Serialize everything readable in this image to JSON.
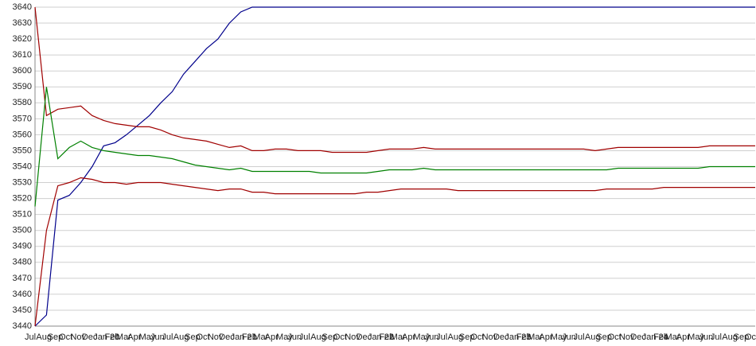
{
  "chart_data": {
    "type": "line",
    "categories": [
      "Jul",
      "Aug",
      "Sep",
      "Oct",
      "Nov",
      "Dec",
      "Jan 20",
      "Feb",
      "Mar",
      "Apr",
      "May",
      "Jun",
      "Jul",
      "Aug",
      "Sep",
      "Oct",
      "Nov",
      "Dec",
      "Jan 21",
      "Feb",
      "Mar",
      "Apr",
      "May",
      "Jun",
      "Jul",
      "Aug",
      "Sep",
      "Oct",
      "Nov",
      "Dec",
      "Jan 22",
      "Feb",
      "Mar",
      "Apr",
      "May",
      "Jun",
      "Jul",
      "Aug",
      "Sep",
      "Oct",
      "Nov",
      "Dec",
      "Jan 23",
      "Feb",
      "Mar",
      "Apr",
      "May",
      "Jun",
      "Jul",
      "Aug",
      "Sep",
      "Oct",
      "Nov",
      "Dec",
      "Jan 24",
      "Feb",
      "Mar",
      "Apr",
      "May",
      "Jun",
      "Jul",
      "Aug",
      "Sep",
      "Oct"
    ],
    "series": [
      {
        "color": "#00008b",
        "values": [
          3440,
          3447,
          3519,
          3522,
          3530,
          3540,
          3553,
          3555,
          3560,
          3566,
          3572,
          3580,
          3587,
          3598,
          3606,
          3614,
          3620,
          3630,
          3637,
          3640,
          3640,
          3640,
          3640,
          3640,
          3640,
          3640,
          3640,
          3640,
          3640,
          3640,
          3640,
          3640,
          3640,
          3640,
          3640,
          3640,
          3640,
          3640,
          3640,
          3640,
          3640,
          3640,
          3640,
          3640,
          3640,
          3640,
          3640,
          3640,
          3640,
          3640,
          3640,
          3640,
          3640,
          3640,
          3640,
          3640,
          3640,
          3640,
          3640,
          3640,
          3640,
          3640,
          3640,
          3640
        ]
      },
      {
        "color": "#a00000",
        "values": [
          3640,
          3572,
          3576,
          3577,
          3578,
          3572,
          3569,
          3567,
          3566,
          3565,
          3565,
          3563,
          3560,
          3558,
          3557,
          3556,
          3554,
          3552,
          3553,
          3550,
          3550,
          3551,
          3551,
          3550,
          3550,
          3550,
          3549,
          3549,
          3549,
          3549,
          3550,
          3551,
          3551,
          3551,
          3552,
          3551,
          3551,
          3551,
          3551,
          3551,
          3551,
          3551,
          3551,
          3551,
          3551,
          3551,
          3551,
          3551,
          3551,
          3550,
          3551,
          3552,
          3552,
          3552,
          3552,
          3552,
          3552,
          3552,
          3552,
          3553,
          3553,
          3553,
          3553,
          3553
        ]
      },
      {
        "color": "#008000",
        "values": [
          3515,
          3590,
          3545,
          3552,
          3556,
          3552,
          3550,
          3549,
          3548,
          3547,
          3547,
          3546,
          3545,
          3543,
          3541,
          3540,
          3539,
          3538,
          3539,
          3537,
          3537,
          3537,
          3537,
          3537,
          3537,
          3536,
          3536,
          3536,
          3536,
          3536,
          3537,
          3538,
          3538,
          3538,
          3539,
          3538,
          3538,
          3538,
          3538,
          3538,
          3538,
          3538,
          3538,
          3538,
          3538,
          3538,
          3538,
          3538,
          3538,
          3538,
          3538,
          3539,
          3539,
          3539,
          3539,
          3539,
          3539,
          3539,
          3539,
          3540,
          3540,
          3540,
          3540,
          3540
        ]
      },
      {
        "color": "#a00000",
        "values": [
          3440,
          3500,
          3528,
          3530,
          3533,
          3532,
          3530,
          3530,
          3529,
          3530,
          3530,
          3530,
          3529,
          3528,
          3527,
          3526,
          3525,
          3526,
          3526,
          3524,
          3524,
          3523,
          3523,
          3523,
          3523,
          3523,
          3523,
          3523,
          3523,
          3524,
          3524,
          3525,
          3526,
          3526,
          3526,
          3526,
          3526,
          3525,
          3525,
          3525,
          3525,
          3525,
          3525,
          3525,
          3525,
          3525,
          3525,
          3525,
          3525,
          3525,
          3526,
          3526,
          3526,
          3526,
          3526,
          3527,
          3527,
          3527,
          3527,
          3527,
          3527,
          3527,
          3527,
          3527
        ]
      }
    ],
    "ylim": [
      3440,
      3640
    ],
    "yticks": [
      3440,
      3450,
      3460,
      3470,
      3480,
      3490,
      3500,
      3510,
      3520,
      3530,
      3540,
      3550,
      3560,
      3570,
      3580,
      3590,
      3600,
      3610,
      3620,
      3630,
      3640
    ],
    "grid": true
  }
}
